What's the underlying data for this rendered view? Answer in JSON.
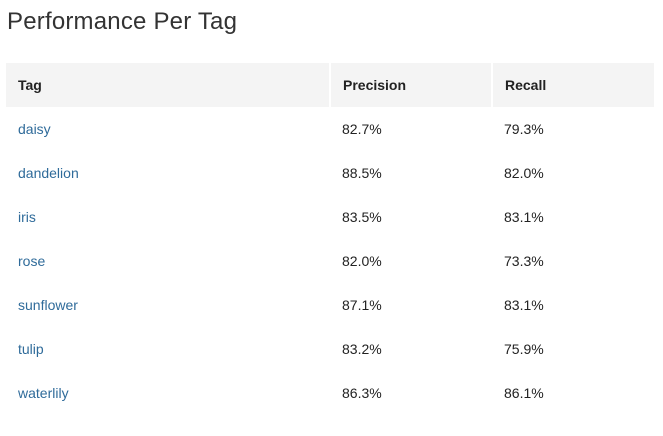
{
  "page": {
    "title": "Performance Per Tag"
  },
  "table": {
    "headers": {
      "tag": "Tag",
      "precision": "Precision",
      "recall": "Recall"
    },
    "rows": [
      {
        "tag": "daisy",
        "precision": "82.7%",
        "recall": "79.3%"
      },
      {
        "tag": "dandelion",
        "precision": "88.5%",
        "recall": "82.0%"
      },
      {
        "tag": "iris",
        "precision": "83.5%",
        "recall": "83.1%"
      },
      {
        "tag": "rose",
        "precision": "82.0%",
        "recall": "73.3%"
      },
      {
        "tag": "sunflower",
        "precision": "87.1%",
        "recall": "83.1%"
      },
      {
        "tag": "tulip",
        "precision": "83.2%",
        "recall": "75.9%"
      },
      {
        "tag": "waterlily",
        "precision": "86.3%",
        "recall": "86.1%"
      }
    ]
  },
  "colors": {
    "link": "#2f6b9a",
    "header_bg": "#f4f4f4",
    "text": "#222222"
  }
}
